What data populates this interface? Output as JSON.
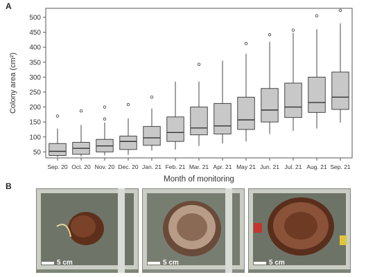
{
  "panels": {
    "a": "A",
    "b": "B"
  },
  "chart_data": {
    "type": "box",
    "xlabel": "Month of monitoring",
    "ylabel": "Colony area (cm²)",
    "ylim": [
      30,
      530
    ],
    "yticks": [
      50,
      100,
      150,
      200,
      250,
      300,
      350,
      400,
      450,
      500
    ],
    "grid": false,
    "categories": [
      "Sep. 20",
      "Oct. 20",
      "Nov. 20",
      "Dec. 20",
      "Jan. 21",
      "Feb. 21",
      "Mar. 21",
      "Apr. 21",
      "May 21",
      "Jun. 21",
      "Jul. 21",
      "Aug. 21",
      "Sep. 21"
    ],
    "boxes": [
      {
        "whisker_low": 33,
        "q1": 38,
        "median": 52,
        "q3": 78,
        "whisker_high": 128,
        "outliers": [
          170
        ]
      },
      {
        "whisker_low": 35,
        "q1": 42,
        "median": 62,
        "q3": 82,
        "whisker_high": 140,
        "outliers": [
          187
        ]
      },
      {
        "whisker_low": 38,
        "q1": 50,
        "median": 70,
        "q3": 92,
        "whisker_high": 148,
        "outliers": [
          160,
          200
        ]
      },
      {
        "whisker_low": 40,
        "q1": 58,
        "median": 85,
        "q3": 103,
        "whisker_high": 162,
        "outliers": [
          208
        ]
      },
      {
        "whisker_low": 55,
        "q1": 72,
        "median": 97,
        "q3": 135,
        "whisker_high": 195,
        "outliers": [
          233
        ]
      },
      {
        "whisker_low": 58,
        "q1": 85,
        "median": 115,
        "q3": 167,
        "whisker_high": 285,
        "outliers": []
      },
      {
        "whisker_low": 70,
        "q1": 107,
        "median": 130,
        "q3": 200,
        "whisker_high": 285,
        "outliers": [
          343
        ]
      },
      {
        "whisker_low": 78,
        "q1": 110,
        "median": 137,
        "q3": 212,
        "whisker_high": 355,
        "outliers": []
      },
      {
        "whisker_low": 85,
        "q1": 125,
        "median": 157,
        "q3": 233,
        "whisker_high": 378,
        "outliers": [
          412
        ]
      },
      {
        "whisker_low": 110,
        "q1": 150,
        "median": 190,
        "q3": 262,
        "whisker_high": 418,
        "outliers": [
          442
        ]
      },
      {
        "whisker_low": 120,
        "q1": 165,
        "median": 200,
        "q3": 280,
        "whisker_high": 448,
        "outliers": [
          457
        ]
      },
      {
        "whisker_low": 128,
        "q1": 182,
        "median": 215,
        "q3": 300,
        "whisker_high": 460,
        "outliers": [
          505
        ]
      },
      {
        "whisker_low": 148,
        "q1": 192,
        "median": 233,
        "q3": 317,
        "whisker_high": 480,
        "outliers": [
          523
        ]
      }
    ],
    "box_color": "#c8c8c8",
    "line_color": "#333333"
  },
  "photos": [
    {
      "scale_label": "5 cm",
      "colony_color": "#6a3a22"
    },
    {
      "scale_label": "5 cm",
      "colony_color": "#8a6a55"
    },
    {
      "scale_label": "5 cm",
      "colony_color": "#7a4530"
    }
  ]
}
